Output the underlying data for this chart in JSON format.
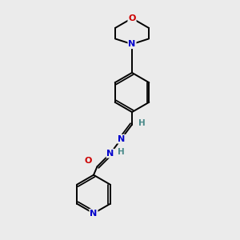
{
  "background_color": "#ebebeb",
  "bond_color": "#000000",
  "atom_colors": {
    "N": "#0000cc",
    "O": "#cc0000",
    "H": "#4a8a8a"
  },
  "figsize": [
    3.0,
    3.0
  ],
  "dpi": 100,
  "xlim": [
    0,
    10
  ],
  "ylim": [
    0,
    10
  ]
}
